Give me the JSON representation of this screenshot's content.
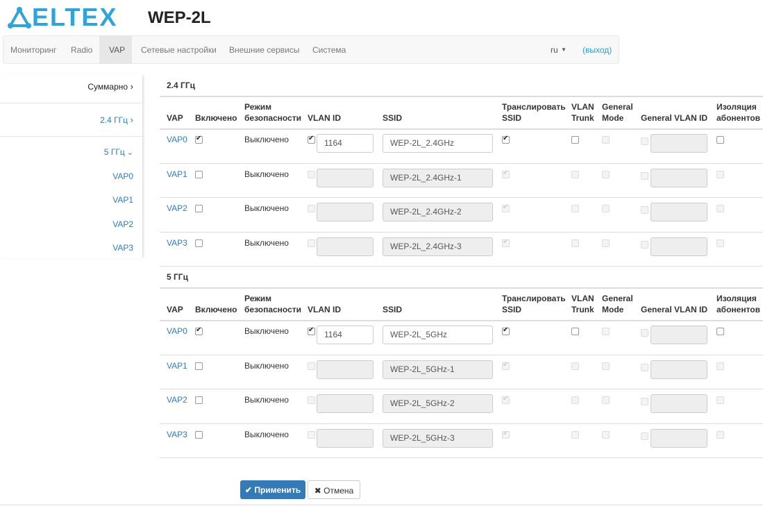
{
  "header": {
    "logo": "ELTEX",
    "title": "WEP-2L"
  },
  "nav": {
    "items": [
      "Мониторинг",
      "Radio",
      "VAP",
      "Сетевые настройки",
      "Внешние сервисы",
      "Система"
    ],
    "active": 2,
    "language": "ru",
    "logout": "(выход)"
  },
  "sidebar": {
    "summary": "Суммарно",
    "band_24": "2.4 ГГц",
    "band_5": "5 ГГц",
    "vaps": [
      "VAP0",
      "VAP1",
      "VAP2",
      "VAP3"
    ]
  },
  "columns": [
    "VAP",
    "Включено",
    "Режим безопасности",
    "VLAN ID",
    "SSID",
    "Транслировать SSID",
    "VLAN Trunk",
    "General Mode",
    "General VLAN ID",
    "Изоляция абонентов"
  ],
  "sections": [
    {
      "title": "2.4 ГГц",
      "rows": [
        {
          "vap": "VAP0",
          "enabled": true,
          "security": "Выключено",
          "vlan_enabled": true,
          "vlan_id": 1164,
          "ssid": "WEP-2L_2.4GHz",
          "broadcast_ssid": true,
          "editable": true
        },
        {
          "vap": "VAP1",
          "enabled": false,
          "security": "Выключено",
          "vlan_enabled": false,
          "ssid": "WEP-2L_2.4GHz-1",
          "broadcast_ssid": true,
          "editable": false
        },
        {
          "vap": "VAP2",
          "enabled": false,
          "security": "Выключено",
          "vlan_enabled": false,
          "ssid": "WEP-2L_2.4GHz-2",
          "broadcast_ssid": true,
          "editable": false
        },
        {
          "vap": "VAP3",
          "enabled": false,
          "security": "Выключено",
          "vlan_enabled": false,
          "ssid": "WEP-2L_2.4GHz-3",
          "broadcast_ssid": true,
          "editable": false
        }
      ]
    },
    {
      "title": "5 ГГц",
      "rows": [
        {
          "vap": "VAP0",
          "enabled": true,
          "security": "Выключено",
          "vlan_enabled": true,
          "vlan_id": 1164,
          "ssid": "WEP-2L_5GHz",
          "broadcast_ssid": true,
          "editable": true
        },
        {
          "vap": "VAP1",
          "enabled": false,
          "security": "Выключено",
          "vlan_enabled": false,
          "ssid": "WEP-2L_5GHz-1",
          "broadcast_ssid": true,
          "editable": false
        },
        {
          "vap": "VAP2",
          "enabled": false,
          "security": "Выключено",
          "vlan_enabled": false,
          "ssid": "WEP-2L_5GHz-2",
          "broadcast_ssid": true,
          "editable": false
        },
        {
          "vap": "VAP3",
          "enabled": false,
          "security": "Выключено",
          "vlan_enabled": false,
          "ssid": "WEP-2L_5GHz-3",
          "broadcast_ssid": true,
          "editable": false
        }
      ]
    }
  ],
  "buttons": {
    "apply": "Применить",
    "cancel": "Отмена"
  }
}
